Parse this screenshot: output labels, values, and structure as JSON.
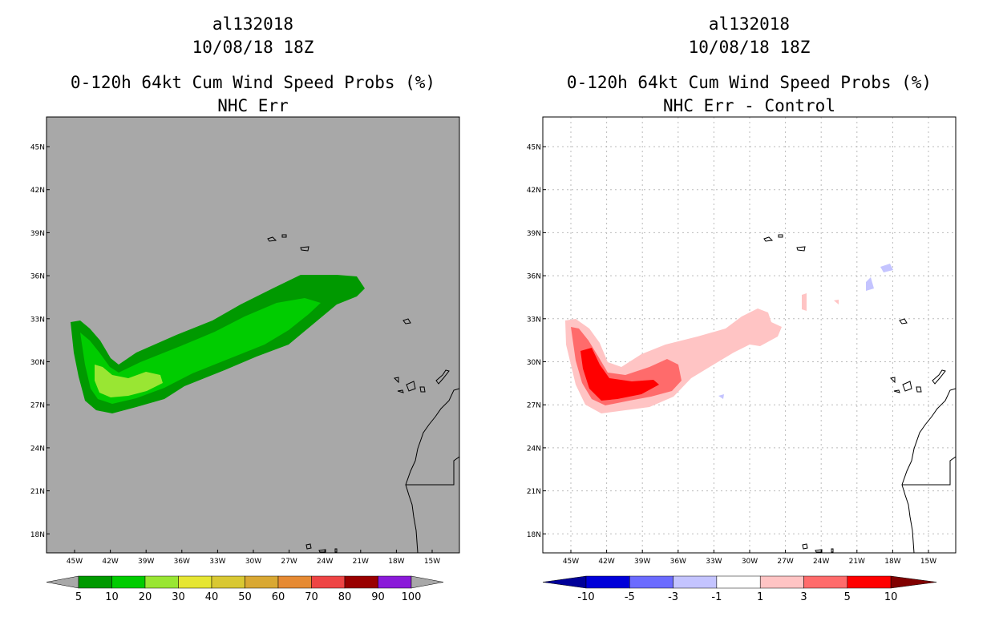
{
  "left": {
    "storm_id": "al132018",
    "datetime": "10/08/18 18Z",
    "product": "0-120h 64kt Cum Wind Speed Probs (%)",
    "subtitle": "NHC Err",
    "background": "#a8a8a8",
    "lat_labels": [
      "45N",
      "42N",
      "39N",
      "36N",
      "33N",
      "30N",
      "27N",
      "24N",
      "21N",
      "18N"
    ],
    "lon_labels": [
      "45W",
      "42W",
      "39W",
      "36W",
      "33W",
      "30W",
      "27W",
      "24W",
      "21W",
      "18W",
      "15W"
    ],
    "colorbar": {
      "labels": [
        "5",
        "10",
        "20",
        "30",
        "40",
        "50",
        "60",
        "70",
        "80",
        "90",
        "100"
      ],
      "colors": [
        "#009900",
        "#00cc00",
        "#99e633",
        "#e6e633",
        "#d9c833",
        "#d9a833",
        "#e68a33",
        "#ee4444",
        "#990000",
        "#8a1ad9"
      ]
    }
  },
  "right": {
    "storm_id": "al132018",
    "datetime": "10/08/18 18Z",
    "product": "0-120h 64kt Cum Wind Speed Probs (%)",
    "subtitle": "NHC Err - Control",
    "background": "#ffffff",
    "lat_labels": [
      "45N",
      "42N",
      "39N",
      "36N",
      "33N",
      "30N",
      "27N",
      "24N",
      "21N",
      "18N"
    ],
    "lon_labels": [
      "45W",
      "42W",
      "39W",
      "36W",
      "33W",
      "30W",
      "27W",
      "24W",
      "21W",
      "18W",
      "15W"
    ],
    "colorbar": {
      "labels": [
        "-10",
        "-5",
        "-3",
        "-1",
        "1",
        "3",
        "5",
        "10"
      ],
      "colors": [
        "#0000d9",
        "#6b6bff",
        "#c4c4ff",
        "#ffffff",
        "#ffc4c4",
        "#ff6b6b",
        "#ff0000"
      ],
      "end_low": "#000099",
      "end_high": "#800000"
    }
  }
}
